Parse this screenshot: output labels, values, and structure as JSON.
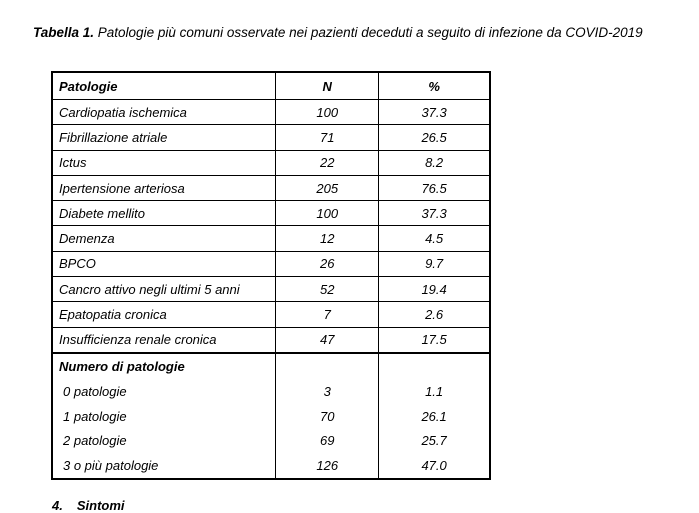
{
  "caption": {
    "label": "Tabella 1.",
    "text": " Patologie più comuni osservate nei pazienti deceduti a seguito di infezione da COVID-2019"
  },
  "table": {
    "headers": [
      "Patologie",
      "N",
      "%"
    ],
    "rows": [
      [
        "Cardiopatia ischemica",
        "100",
        "37.3"
      ],
      [
        "Fibrillazione atriale",
        "71",
        "26.5"
      ],
      [
        "Ictus",
        "22",
        "8.2"
      ],
      [
        "Ipertensione arteriosa",
        "205",
        "76.5"
      ],
      [
        "Diabete mellito",
        "100",
        "37.3"
      ],
      [
        "Demenza",
        "12",
        "4.5"
      ],
      [
        "BPCO",
        "26",
        "9.7"
      ],
      [
        "Cancro attivo negli ultimi 5 anni",
        "52",
        "19.4"
      ],
      [
        "Epatopatia cronica",
        "7",
        "2.6"
      ],
      [
        "Insufficienza renale cronica",
        "47",
        "17.5"
      ]
    ],
    "group_heading": "Numero di patologie",
    "group_rows": [
      [
        "0 patologie",
        "3",
        "1.1"
      ],
      [
        "1 patologie",
        "70",
        "26.1"
      ],
      [
        "2 patologie",
        "69",
        "25.7"
      ],
      [
        "3 o più patologie",
        "126",
        "47.0"
      ]
    ]
  },
  "next_section": {
    "number": "4.",
    "title": "Sintomi"
  }
}
